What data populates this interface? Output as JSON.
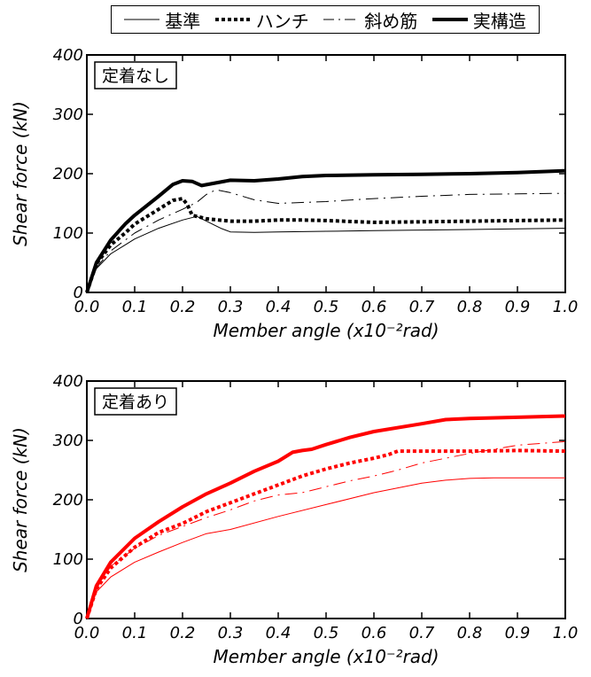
{
  "legend": {
    "items": [
      {
        "label": "基準",
        "style": "thin"
      },
      {
        "label": "ハンチ",
        "style": "dotted"
      },
      {
        "label": "斜め筋",
        "style": "dashdot"
      },
      {
        "label": "実構造",
        "style": "thick"
      }
    ]
  },
  "chart_data": [
    {
      "type": "line",
      "title": "定着なし",
      "xlabel": "Member angle (x10⁻²rad)",
      "ylabel": "Shear force (kN)",
      "xlim": [
        0,
        1.0
      ],
      "ylim": [
        0,
        400
      ],
      "xticks": [
        "0.0",
        "0.1",
        "0.2",
        "0.3",
        "0.4",
        "0.5",
        "0.6",
        "0.7",
        "0.8",
        "0.9",
        "1.0"
      ],
      "yticks": [
        "0",
        "100",
        "200",
        "300",
        "400"
      ],
      "line_color": "#000000",
      "series": [
        {
          "name": "基準",
          "x": [
            0,
            0.02,
            0.05,
            0.08,
            0.1,
            0.15,
            0.2,
            0.23,
            0.25,
            0.28,
            0.3,
            0.35,
            0.4,
            0.5,
            0.6,
            0.7,
            0.8,
            0.9,
            1.0
          ],
          "y": [
            0,
            40,
            65,
            80,
            90,
            108,
            122,
            128,
            120,
            108,
            102,
            101,
            102,
            103,
            104,
            105,
            106,
            107,
            108
          ]
        },
        {
          "name": "ハンチ",
          "x": [
            0,
            0.02,
            0.05,
            0.08,
            0.1,
            0.15,
            0.18,
            0.2,
            0.21,
            0.22,
            0.25,
            0.3,
            0.35,
            0.4,
            0.45,
            0.5,
            0.6,
            0.7,
            0.8,
            0.9,
            1.0
          ],
          "y": [
            0,
            48,
            80,
            100,
            115,
            140,
            155,
            158,
            148,
            130,
            124,
            120,
            120,
            122,
            122,
            121,
            118,
            119,
            120,
            121,
            122
          ]
        },
        {
          "name": "斜め筋",
          "x": [
            0,
            0.02,
            0.05,
            0.08,
            0.1,
            0.15,
            0.2,
            0.23,
            0.25,
            0.27,
            0.3,
            0.35,
            0.4,
            0.5,
            0.6,
            0.7,
            0.8,
            0.9,
            1.0
          ],
          "y": [
            0,
            42,
            70,
            88,
            100,
            122,
            140,
            152,
            165,
            173,
            168,
            156,
            150,
            153,
            158,
            162,
            165,
            166,
            167
          ]
        },
        {
          "name": "実構造",
          "x": [
            0,
            0.02,
            0.05,
            0.08,
            0.1,
            0.15,
            0.18,
            0.2,
            0.22,
            0.24,
            0.26,
            0.3,
            0.35,
            0.4,
            0.45,
            0.5,
            0.6,
            0.7,
            0.8,
            0.9,
            1.0
          ],
          "y": [
            0,
            50,
            88,
            115,
            130,
            162,
            182,
            188,
            187,
            180,
            183,
            189,
            188,
            191,
            195,
            197,
            198,
            199,
            200,
            202,
            205
          ]
        }
      ]
    },
    {
      "type": "line",
      "title": "定着あり",
      "xlabel": "Member angle (x10⁻²rad)",
      "ylabel": "Shear force (kN)",
      "xlim": [
        0,
        1.0
      ],
      "ylim": [
        0,
        400
      ],
      "xticks": [
        "0.0",
        "0.1",
        "0.2",
        "0.3",
        "0.4",
        "0.5",
        "0.6",
        "0.7",
        "0.8",
        "0.9",
        "1.0"
      ],
      "yticks": [
        "0",
        "100",
        "200",
        "300",
        "400"
      ],
      "line_color": "#ff0000",
      "series": [
        {
          "name": "基準",
          "x": [
            0,
            0.02,
            0.05,
            0.1,
            0.15,
            0.2,
            0.25,
            0.3,
            0.4,
            0.5,
            0.6,
            0.7,
            0.75,
            0.8,
            0.85,
            0.9,
            1.0
          ],
          "y": [
            0,
            45,
            70,
            95,
            112,
            128,
            143,
            150,
            172,
            192,
            212,
            228,
            233,
            236,
            237,
            237,
            237
          ]
        },
        {
          "name": "ハンチ",
          "x": [
            0,
            0.02,
            0.05,
            0.1,
            0.15,
            0.2,
            0.25,
            0.3,
            0.35,
            0.4,
            0.45,
            0.5,
            0.55,
            0.6,
            0.63,
            0.65,
            0.7,
            0.8,
            0.9,
            1.0
          ],
          "y": [
            0,
            50,
            85,
            120,
            145,
            160,
            180,
            195,
            210,
            225,
            240,
            252,
            262,
            270,
            276,
            282,
            282,
            282,
            283,
            282
          ]
        },
        {
          "name": "斜め筋",
          "x": [
            0,
            0.02,
            0.05,
            0.1,
            0.15,
            0.2,
            0.25,
            0.3,
            0.35,
            0.4,
            0.45,
            0.5,
            0.55,
            0.6,
            0.65,
            0.7,
            0.8,
            0.9,
            1.0
          ],
          "y": [
            0,
            50,
            88,
            118,
            140,
            155,
            170,
            183,
            198,
            208,
            212,
            222,
            232,
            240,
            250,
            262,
            278,
            292,
            298
          ]
        },
        {
          "name": "実構造",
          "x": [
            0,
            0.02,
            0.05,
            0.1,
            0.15,
            0.2,
            0.25,
            0.3,
            0.35,
            0.4,
            0.43,
            0.45,
            0.47,
            0.5,
            0.55,
            0.6,
            0.7,
            0.75,
            0.8,
            0.9,
            1.0
          ],
          "y": [
            0,
            55,
            95,
            135,
            163,
            188,
            210,
            228,
            248,
            265,
            280,
            283,
            285,
            293,
            305,
            315,
            328,
            335,
            337,
            339,
            341
          ]
        }
      ]
    }
  ]
}
